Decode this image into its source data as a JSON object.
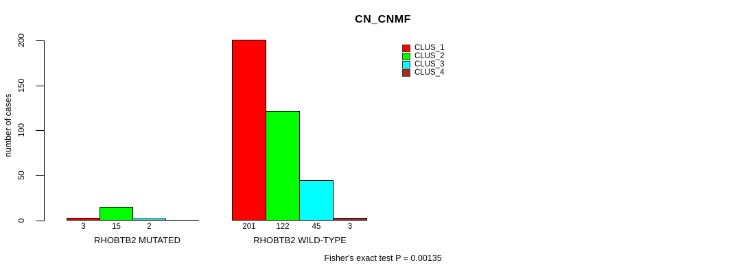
{
  "chart_data": {
    "type": "bar",
    "title": "CN_CNMF",
    "ylabel": "number of cases",
    "xlabel": "",
    "ylim": [
      0,
      200
    ],
    "yticks": [
      0,
      50,
      100,
      150,
      200
    ],
    "grid": false,
    "legend_position": "top-right",
    "groups": [
      "RHOBTB2 MUTATED",
      "RHOBTB2 WILD-TYPE"
    ],
    "series": [
      {
        "name": "CLUS_1",
        "color": "#FF0000",
        "values": [
          3,
          201
        ]
      },
      {
        "name": "CLUS_2",
        "color": "#00FF00",
        "values": [
          15,
          122
        ]
      },
      {
        "name": "CLUS_3",
        "color": "#00FFFF",
        "values": [
          2,
          45
        ]
      },
      {
        "name": "CLUS_4",
        "color": "#A52A2A",
        "values": [
          0,
          3
        ]
      }
    ],
    "bar_value_labels": [
      [
        "3",
        "15",
        "2",
        ""
      ],
      [
        "201",
        "122",
        "45",
        "3"
      ]
    ],
    "annotation": "Fisher's exact test P = 0.00135"
  },
  "colors": {
    "background": "#FFFFFF",
    "axis": "#000000",
    "bar_border": "#000000"
  }
}
